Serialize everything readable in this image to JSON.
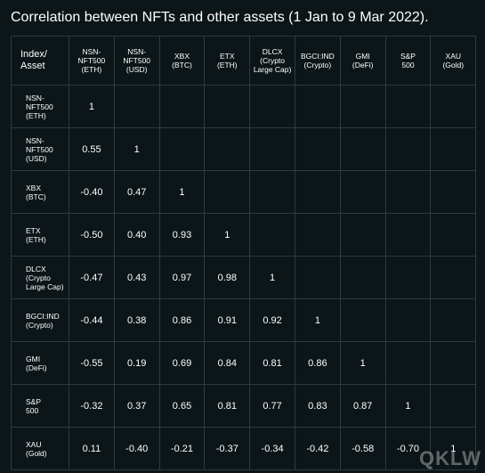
{
  "title": "Correlation between NFTs and other assets (1 Jan to 9 Mar 2022).",
  "chart_data": {
    "type": "table",
    "title": "Correlation between NFTs and other assets (1 Jan to 9 Mar 2022).",
    "corner_header": "Index/\nAsset",
    "columns": [
      "NSN-\nNFT500\n(ETH)",
      "NSN-\nNFT500\n(USD)",
      "XBX\n(BTC)",
      "ETX\n(ETH)",
      "DLCX\n(Crypto\nLarge Cap)",
      "BGCI:IND\n(Crypto)",
      "GMI\n(DeFi)",
      "S&P\n500",
      "XAU\n(Gold)"
    ],
    "rows": [
      {
        "label": "NSN-\nNFT500\n(ETH)",
        "values": [
          "1",
          "",
          "",
          "",
          "",
          "",
          "",
          "",
          ""
        ]
      },
      {
        "label": "NSN-\nNFT500\n(USD)",
        "values": [
          "0.55",
          "1",
          "",
          "",
          "",
          "",
          "",
          "",
          ""
        ]
      },
      {
        "label": "XBX\n(BTC)",
        "values": [
          "-0.40",
          "0.47",
          "1",
          "",
          "",
          "",
          "",
          "",
          ""
        ]
      },
      {
        "label": "ETX\n(ETH)",
        "values": [
          "-0.50",
          "0.40",
          "0.93",
          "1",
          "",
          "",
          "",
          "",
          ""
        ]
      },
      {
        "label": "DLCX\n(Crypto\nLarge Cap)",
        "values": [
          "-0.47",
          "0.43",
          "0.97",
          "0.98",
          "1",
          "",
          "",
          "",
          ""
        ]
      },
      {
        "label": "BGCI:IND\n(Crypto)",
        "values": [
          "-0.44",
          "0.38",
          "0.86",
          "0.91",
          "0.92",
          "1",
          "",
          "",
          ""
        ]
      },
      {
        "label": "GMI\n(DeFi)",
        "values": [
          "-0.55",
          "0.19",
          "0.69",
          "0.84",
          "0.81",
          "0.86",
          "1",
          "",
          ""
        ]
      },
      {
        "label": "S&P\n500",
        "values": [
          "-0.32",
          "0.37",
          "0.65",
          "0.81",
          "0.77",
          "0.83",
          "0.87",
          "1",
          ""
        ]
      },
      {
        "label": "XAU\n(Gold)",
        "values": [
          "0.11",
          "-0.40",
          "-0.21",
          "-0.37",
          "-0.34",
          "-0.42",
          "-0.58",
          "-0.70",
          "1"
        ]
      }
    ]
  },
  "watermark": "QKLW"
}
